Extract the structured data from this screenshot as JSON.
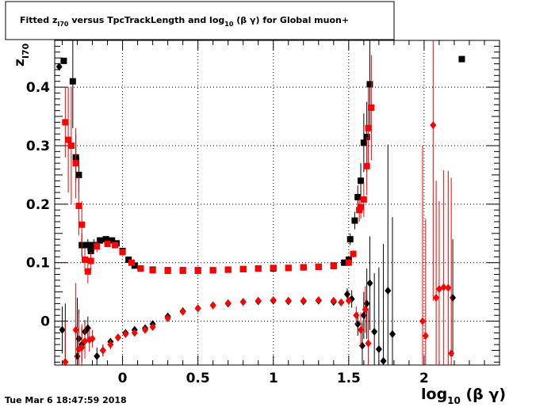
{
  "title": {
    "prefix": "Fitted  z",
    "sub": "I70",
    "mid": "  versus TpcTrackLength and log",
    "sub2": "10",
    "suffix": " (β γ) for Global muon+"
  },
  "timestamp": "Tue Mar  6 18:47:59 2018",
  "chart_data": {
    "type": "scatter",
    "title": "Fitted z_I70 versus TpcTrackLength and log10 (β γ) for Global muon+",
    "xlabel": {
      "main": "log",
      "sub": "10",
      "rest": " (β γ)"
    },
    "ylabel": {
      "main": "z",
      "sub": "I70"
    },
    "xlim": [
      -0.45,
      2.5
    ],
    "ylim": [
      -0.075,
      0.48
    ],
    "grid": true,
    "xticks": [
      {
        "value": 0,
        "label": "0"
      },
      {
        "value": 0.5,
        "label": "0.5"
      },
      {
        "value": 1,
        "label": "1"
      },
      {
        "value": 1.5,
        "label": "1.5"
      },
      {
        "value": 2,
        "label": "2"
      }
    ],
    "yticks": [
      {
        "value": 0,
        "label": "0"
      },
      {
        "value": 0.1,
        "label": "0.1"
      },
      {
        "value": 0.2,
        "label": "0.2"
      },
      {
        "value": 0.3,
        "label": "0.3"
      },
      {
        "value": 0.4,
        "label": "0.4"
      }
    ],
    "series": [
      {
        "marker": "square",
        "color": "#000000",
        "points": [
          [
            -0.39,
            0.445,
            0
          ],
          [
            -0.33,
            0.41,
            0.08
          ],
          [
            -0.31,
            0.28,
            0.04
          ],
          [
            -0.29,
            0.25,
            0.03
          ],
          [
            -0.27,
            0.13,
            0.02
          ],
          [
            -0.23,
            0.13,
            0.01
          ],
          [
            -0.21,
            0.12,
            0.01
          ],
          [
            -0.19,
            0.13,
            0.01
          ],
          [
            -0.15,
            0.138,
            0.004
          ],
          [
            -0.11,
            0.14,
            0.003
          ],
          [
            -0.07,
            0.138,
            0.003
          ],
          [
            -0.04,
            0.133,
            0.003
          ],
          [
            0.0,
            0.12,
            0.002
          ],
          [
            0.04,
            0.105,
            0.002
          ],
          [
            0.08,
            0.095,
            0.002
          ],
          [
            0.12,
            0.09,
            0.001
          ],
          [
            0.2,
            0.088,
            0.001
          ],
          [
            0.3,
            0.087,
            0.001
          ],
          [
            0.4,
            0.087,
            0.001
          ],
          [
            0.5,
            0.087,
            0.001
          ],
          [
            0.6,
            0.087,
            0.001
          ],
          [
            0.7,
            0.088,
            0.001
          ],
          [
            0.8,
            0.089,
            0.001
          ],
          [
            0.9,
            0.09,
            0.001
          ],
          [
            1.0,
            0.09,
            0.001
          ],
          [
            1.1,
            0.091,
            0.001
          ],
          [
            1.2,
            0.092,
            0.001
          ],
          [
            1.3,
            0.093,
            0.001
          ],
          [
            1.4,
            0.095,
            0.002
          ],
          [
            1.47,
            0.1,
            0.003
          ],
          [
            1.5,
            0.105,
            0.004
          ],
          [
            1.51,
            0.14,
            0.01
          ],
          [
            1.54,
            0.172,
            0.015
          ],
          [
            1.56,
            0.212,
            0.02
          ],
          [
            1.58,
            0.24,
            0.03
          ],
          [
            1.6,
            0.305,
            0.05
          ],
          [
            1.62,
            0.315,
            0.06
          ],
          [
            1.64,
            0.405,
            0.08
          ],
          [
            2.25,
            0.448,
            0
          ]
        ]
      },
      {
        "marker": "square",
        "color": "#ff0000",
        "points": [
          [
            -0.38,
            0.34,
            0.06
          ],
          [
            -0.36,
            0.31,
            0.09
          ],
          [
            -0.34,
            0.3,
            0.1
          ],
          [
            -0.31,
            0.27,
            0.06
          ],
          [
            -0.29,
            0.197,
            0.05
          ],
          [
            -0.27,
            0.165,
            0.04
          ],
          [
            -0.25,
            0.105,
            0.02
          ],
          [
            -0.23,
            0.085,
            0.02
          ],
          [
            -0.21,
            0.103,
            0.015
          ],
          [
            -0.17,
            0.128,
            0.01
          ],
          [
            -0.1,
            0.132,
            0.005
          ],
          [
            -0.05,
            0.13,
            0.004
          ],
          [
            0.0,
            0.118,
            0.003
          ],
          [
            0.06,
            0.1,
            0.002
          ],
          [
            0.12,
            0.09,
            0.002
          ],
          [
            0.2,
            0.087,
            0.001
          ],
          [
            0.3,
            0.086,
            0.001
          ],
          [
            0.4,
            0.086,
            0.001
          ],
          [
            0.5,
            0.086,
            0.001
          ],
          [
            0.6,
            0.087,
            0.001
          ],
          [
            0.7,
            0.088,
            0.001
          ],
          [
            0.8,
            0.089,
            0.001
          ],
          [
            0.9,
            0.09,
            0.001
          ],
          [
            1.0,
            0.091,
            0.001
          ],
          [
            1.1,
            0.091,
            0.001
          ],
          [
            1.2,
            0.092,
            0.001
          ],
          [
            1.3,
            0.093,
            0.001
          ],
          [
            1.4,
            0.094,
            0.002
          ],
          [
            1.5,
            0.1,
            0.004
          ],
          [
            1.53,
            0.115,
            0.006
          ],
          [
            1.57,
            0.19,
            0.02
          ],
          [
            1.58,
            0.195,
            0.02
          ],
          [
            1.6,
            0.208,
            0.03
          ],
          [
            1.62,
            0.265,
            0.05
          ],
          [
            1.63,
            0.33,
            0.07
          ],
          [
            1.65,
            0.365,
            0.09
          ]
        ]
      },
      {
        "marker": "diamond",
        "color": "#000000",
        "points": [
          [
            -0.42,
            0.435,
            0
          ],
          [
            -0.4,
            -0.015,
            0.04
          ],
          [
            -0.38,
            -0.07,
            0.1
          ],
          [
            -0.3,
            -0.06,
            0.1
          ],
          [
            -0.29,
            -0.03,
            0.05
          ],
          [
            -0.27,
            -0.04,
            0.03
          ],
          [
            -0.25,
            -0.018,
            0.02
          ],
          [
            -0.23,
            -0.012,
            0.02
          ],
          [
            -0.17,
            -0.06,
            0.015
          ],
          [
            -0.13,
            -0.05,
            0.01
          ],
          [
            -0.08,
            -0.035,
            0.006
          ],
          [
            -0.03,
            -0.028,
            0.004
          ],
          [
            0.02,
            -0.02,
            0.003
          ],
          [
            0.08,
            -0.015,
            0.002
          ],
          [
            0.15,
            -0.012,
            0.002
          ],
          [
            0.2,
            -0.005,
            0.002
          ],
          [
            0.3,
            0.008,
            0.002
          ],
          [
            0.4,
            0.017,
            0.002
          ],
          [
            0.5,
            0.022,
            0.002
          ],
          [
            0.6,
            0.027,
            0.002
          ],
          [
            0.7,
            0.03,
            0.002
          ],
          [
            0.8,
            0.033,
            0.002
          ],
          [
            0.9,
            0.034,
            0.002
          ],
          [
            1.0,
            0.035,
            0.002
          ],
          [
            1.1,
            0.034,
            0.002
          ],
          [
            1.2,
            0.034,
            0.002
          ],
          [
            1.3,
            0.035,
            0.002
          ],
          [
            1.4,
            0.033,
            0.003
          ],
          [
            1.45,
            0.032,
            0.005
          ],
          [
            1.49,
            0.046,
            0.01
          ],
          [
            1.52,
            0.038,
            0.015
          ],
          [
            1.56,
            -0.005,
            0.02
          ],
          [
            1.59,
            -0.042,
            0.04
          ],
          [
            1.6,
            0.01,
            0.04
          ],
          [
            1.62,
            0.03,
            0.06
          ],
          [
            1.64,
            0.065,
            0.08
          ],
          [
            1.67,
            -0.018,
            0.1
          ],
          [
            1.7,
            -0.048,
            0.14
          ],
          [
            1.73,
            -0.068,
            0.2
          ],
          [
            1.76,
            0.052,
            0.25
          ],
          [
            1.79,
            -0.022,
            0.2
          ],
          [
            2.19,
            0.04,
            0.1
          ]
        ]
      },
      {
        "marker": "diamond",
        "color": "#ff0000",
        "points": [
          [
            -0.38,
            -0.07,
            0.07
          ],
          [
            -0.31,
            -0.015,
            0.08
          ],
          [
            -0.29,
            -0.048,
            0.06
          ],
          [
            -0.27,
            -0.045,
            0.04
          ],
          [
            -0.25,
            -0.034,
            0.03
          ],
          [
            -0.22,
            -0.032,
            0.02
          ],
          [
            -0.2,
            -0.03,
            0.015
          ],
          [
            -0.13,
            -0.05,
            0.01
          ],
          [
            -0.08,
            -0.04,
            0.008
          ],
          [
            -0.03,
            -0.028,
            0.005
          ],
          [
            0.02,
            -0.022,
            0.004
          ],
          [
            0.08,
            -0.02,
            0.003
          ],
          [
            0.15,
            -0.015,
            0.003
          ],
          [
            0.2,
            -0.01,
            0.002
          ],
          [
            0.3,
            0.005,
            0.002
          ],
          [
            0.4,
            0.016,
            0.002
          ],
          [
            0.5,
            0.022,
            0.002
          ],
          [
            0.6,
            0.027,
            0.002
          ],
          [
            0.7,
            0.031,
            0.002
          ],
          [
            0.8,
            0.033,
            0.002
          ],
          [
            0.9,
            0.035,
            0.002
          ],
          [
            1.0,
            0.036,
            0.002
          ],
          [
            1.1,
            0.035,
            0.002
          ],
          [
            1.2,
            0.035,
            0.002
          ],
          [
            1.3,
            0.036,
            0.002
          ],
          [
            1.4,
            0.035,
            0.003
          ],
          [
            1.45,
            0.032,
            0.004
          ],
          [
            1.5,
            0.035,
            0.008
          ],
          [
            1.55,
            0.01,
            0.015
          ],
          [
            1.58,
            -0.015,
            0.03
          ],
          [
            1.61,
            0.02,
            0.04
          ],
          [
            1.63,
            -0.038,
            0.06
          ],
          [
            1.99,
            0.0,
            0.3
          ],
          [
            2.01,
            -0.025,
            0.2
          ],
          [
            2.06,
            0.335,
            0.3
          ],
          [
            2.08,
            0.04,
            0.2
          ],
          [
            2.1,
            0.055,
            0.15
          ],
          [
            2.13,
            0.058,
            0.2
          ],
          [
            2.16,
            0.057,
            0.2
          ],
          [
            2.18,
            -0.055,
            0.3
          ]
        ]
      }
    ]
  }
}
